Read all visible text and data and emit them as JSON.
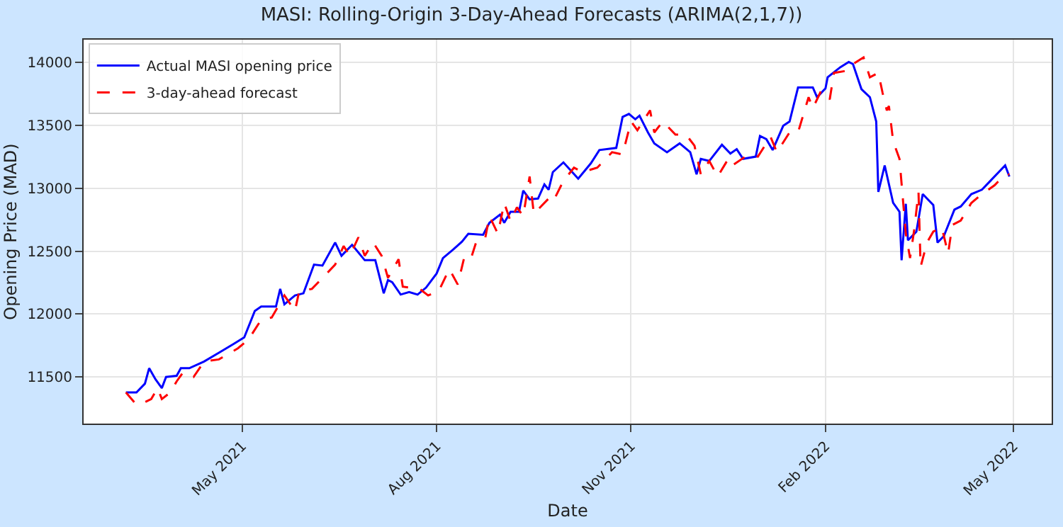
{
  "chart_data": {
    "type": "line",
    "title": "MASI: Rolling-Origin 3-Day-Ahead Forecasts (ARIMA(2,1,7))",
    "xlabel": "Date",
    "ylabel": "Opening Price (MAD)",
    "xlim": [
      "2021-02-15",
      "2022-05-19"
    ],
    "xticks": [
      {
        "value": "2021-05-01",
        "label": "May 2021"
      },
      {
        "value": "2021-08-01",
        "label": "Aug 2021"
      },
      {
        "value": "2021-11-01",
        "label": "Nov 2021"
      },
      {
        "value": "2022-02-01",
        "label": "Feb 2022"
      },
      {
        "value": "2022-05-01",
        "label": "May 2022"
      }
    ],
    "ylim": [
      11130,
      14180
    ],
    "yticks": [
      11500,
      12000,
      12500,
      13000,
      13500,
      14000
    ],
    "grid": true,
    "legend": "top left",
    "series": [
      {
        "name": "Actual MASI opening price",
        "color": "#0000ff",
        "line_style": "solid",
        "x": [
          "2021-03-07",
          "2021-03-12",
          "2021-03-16",
          "2021-03-18",
          "2021-03-21",
          "2021-03-24",
          "2021-03-26",
          "2021-03-31",
          "2021-04-02",
          "2021-04-06",
          "2021-04-13",
          "2021-04-20",
          "2021-04-27",
          "2021-05-02",
          "2021-05-07",
          "2021-05-10",
          "2021-05-17",
          "2021-05-19",
          "2021-05-21",
          "2021-05-26",
          "2021-05-30",
          "2021-06-04",
          "2021-06-08",
          "2021-06-14",
          "2021-06-17",
          "2021-06-22",
          "2021-06-28",
          "2021-07-03",
          "2021-07-07",
          "2021-07-09",
          "2021-07-11",
          "2021-07-15",
          "2021-07-19",
          "2021-07-23",
          "2021-07-27",
          "2021-08-01",
          "2021-08-04",
          "2021-08-09",
          "2021-08-13",
          "2021-08-16",
          "2021-08-23",
          "2021-08-26",
          "2021-08-31",
          "2021-09-02",
          "2021-09-05",
          "2021-09-09",
          "2021-09-11",
          "2021-09-14",
          "2021-09-18",
          "2021-09-21",
          "2021-09-23",
          "2021-09-25",
          "2021-09-30",
          "2021-10-07",
          "2021-10-13",
          "2021-10-17",
          "2021-10-25",
          "2021-10-28",
          "2021-10-31",
          "2021-11-03",
          "2021-11-05",
          "2021-11-09",
          "2021-11-12",
          "2021-11-18",
          "2021-11-24",
          "2021-11-29",
          "2021-12-02",
          "2021-12-04",
          "2021-12-08",
          "2021-12-14",
          "2021-12-18",
          "2021-12-21",
          "2021-12-24",
          "2021-12-30",
          "2022-01-01",
          "2022-01-04",
          "2022-01-07",
          "2022-01-12",
          "2022-01-15",
          "2022-01-19",
          "2022-01-22",
          "2022-01-26",
          "2022-01-28",
          "2022-02-01",
          "2022-02-02",
          "2022-02-08",
          "2022-02-12",
          "2022-02-14",
          "2022-02-18",
          "2022-02-22",
          "2022-02-25",
          "2022-02-26",
          "2022-03-01",
          "2022-03-05",
          "2022-03-08",
          "2022-03-09",
          "2022-03-11",
          "2022-03-12",
          "2022-03-16",
          "2022-03-19",
          "2022-03-24",
          "2022-03-26",
          "2022-03-29",
          "2022-04-03",
          "2022-04-06",
          "2022-04-11",
          "2022-04-16",
          "2022-04-20",
          "2022-04-27",
          "2022-04-29"
        ],
        "values": [
          11377,
          11377,
          11447,
          11570,
          11482,
          11412,
          11500,
          11510,
          11570,
          11570,
          11623,
          11693,
          11763,
          11815,
          12025,
          12060,
          12060,
          12200,
          12078,
          12148,
          12165,
          12393,
          12385,
          12568,
          12463,
          12550,
          12428,
          12428,
          12165,
          12270,
          12253,
          12155,
          12175,
          12155,
          12210,
          12322,
          12445,
          12515,
          12575,
          12638,
          12630,
          12725,
          12790,
          12725,
          12813,
          12813,
          12981,
          12911,
          12918,
          13030,
          12988,
          13128,
          13205,
          13076,
          13198,
          13303,
          13320,
          13566,
          13590,
          13548,
          13576,
          13443,
          13356,
          13286,
          13356,
          13286,
          13110,
          13233,
          13216,
          13345,
          13275,
          13310,
          13233,
          13251,
          13415,
          13390,
          13303,
          13496,
          13530,
          13800,
          13800,
          13800,
          13723,
          13793,
          13881,
          13961,
          14003,
          13986,
          13787,
          13723,
          13530,
          12970,
          13181,
          12883,
          12813,
          12428,
          12876,
          12586,
          12655,
          12953,
          12866,
          12568,
          12620,
          12830,
          12855,
          12953,
          12988,
          13058,
          13181,
          13093
        ]
      },
      {
        "name": "3-day-ahead forecast",
        "color": "#ff0000",
        "line_style": "dashed",
        "x": [
          "2021-03-07",
          "2021-03-12",
          "2021-03-16",
          "2021-03-19",
          "2021-03-22",
          "2021-03-24",
          "2021-03-28",
          "2021-03-31",
          "2021-04-03",
          "2021-04-08",
          "2021-04-13",
          "2021-04-20",
          "2021-04-29",
          "2021-05-04",
          "2021-05-10",
          "2021-05-15",
          "2021-05-21",
          "2021-05-26",
          "2021-05-28",
          "2021-06-03",
          "2021-06-10",
          "2021-06-14",
          "2021-06-18",
          "2021-06-21",
          "2021-06-25",
          "2021-06-28",
          "2021-07-02",
          "2021-07-06",
          "2021-07-09",
          "2021-07-14",
          "2021-07-16",
          "2021-07-24",
          "2021-07-28",
          "2021-08-02",
          "2021-08-07",
          "2021-08-11",
          "2021-08-14",
          "2021-08-17",
          "2021-08-20",
          "2021-08-24",
          "2021-08-26",
          "2021-08-30",
          "2021-09-02",
          "2021-09-05",
          "2021-09-08",
          "2021-09-11",
          "2021-09-14",
          "2021-09-16",
          "2021-09-23",
          "2021-09-25",
          "2021-09-30",
          "2021-10-05",
          "2021-10-09",
          "2021-10-16",
          "2021-10-23",
          "2021-10-28",
          "2021-11-01",
          "2021-11-04",
          "2021-11-10",
          "2021-11-12",
          "2021-11-16",
          "2021-11-22",
          "2021-11-27",
          "2021-12-01",
          "2021-12-04",
          "2021-12-08",
          "2021-12-12",
          "2021-12-17",
          "2021-12-19",
          "2021-12-26",
          "2021-12-31",
          "2022-01-06",
          "2022-01-09",
          "2022-01-15",
          "2022-01-19",
          "2022-01-24",
          "2022-01-26",
          "2022-01-30",
          "2022-02-03",
          "2022-02-05",
          "2022-02-11",
          "2022-02-14",
          "2022-02-19",
          "2022-02-22",
          "2022-02-26",
          "2022-02-28",
          "2022-03-02",
          "2022-03-03",
          "2022-03-05",
          "2022-03-08",
          "2022-03-11",
          "2022-03-13",
          "2022-03-15",
          "2022-03-17",
          "2022-03-18",
          "2022-03-21",
          "2022-03-24",
          "2022-03-28",
          "2022-03-31",
          "2022-04-02",
          "2022-04-06",
          "2022-04-11",
          "2022-04-16",
          "2022-04-22",
          "2022-04-27",
          "2022-04-29"
        ],
        "values": [
          11377,
          11280,
          11300,
          11325,
          11412,
          11325,
          11377,
          11465,
          11535,
          11500,
          11623,
          11640,
          11728,
          11798,
          11955,
          11973,
          12148,
          12025,
          12183,
          12200,
          12322,
          12393,
          12540,
          12463,
          12610,
          12463,
          12568,
          12463,
          12288,
          12435,
          12218,
          12200,
          12148,
          12183,
          12358,
          12235,
          12445,
          12428,
          12586,
          12603,
          12778,
          12638,
          12883,
          12736,
          12848,
          12778,
          13093,
          12796,
          12918,
          12890,
          13058,
          13163,
          13128,
          13163,
          13286,
          13268,
          13530,
          13461,
          13618,
          13443,
          13530,
          13426,
          13426,
          13338,
          13110,
          13216,
          13093,
          13233,
          13181,
          13262,
          13251,
          13408,
          13286,
          13443,
          13443,
          13723,
          13636,
          13776,
          13706,
          13916,
          13933,
          13986,
          14039,
          13881,
          13916,
          13758,
          13618,
          13653,
          13373,
          13233,
          12638,
          12445,
          12673,
          12970,
          12375,
          12568,
          12655,
          12690,
          12480,
          12708,
          12743,
          12883,
          12953,
          13023,
          13110,
          13110
        ]
      }
    ]
  }
}
